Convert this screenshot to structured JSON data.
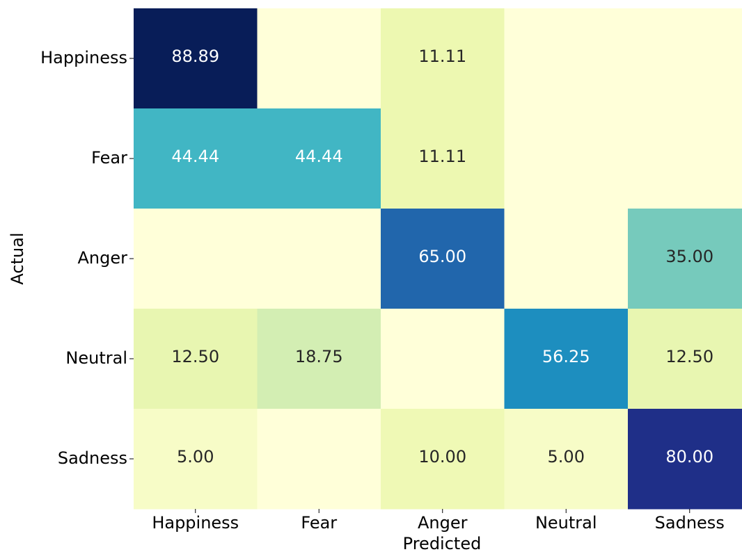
{
  "chart_data": {
    "type": "heatmap",
    "xlabel": "Predicted",
    "ylabel": "Actual",
    "columns": [
      "Happiness",
      "Fear",
      "Anger",
      "Neutral",
      "Sadness"
    ],
    "rows": [
      "Happiness",
      "Fear",
      "Anger",
      "Neutral",
      "Sadness"
    ],
    "values": [
      [
        88.89,
        0,
        11.11,
        0,
        0
      ],
      [
        44.44,
        44.44,
        11.11,
        0,
        0
      ],
      [
        0,
        0,
        65.0,
        0,
        35.0
      ],
      [
        12.5,
        18.75,
        0,
        56.25,
        12.5
      ],
      [
        5.0,
        0,
        10.0,
        5.0,
        80.0
      ]
    ],
    "value_labels": [
      [
        "88.89",
        null,
        "11.11",
        null,
        null
      ],
      [
        "44.44",
        "44.44",
        "11.11",
        null,
        null
      ],
      [
        null,
        null,
        "65.00",
        null,
        "35.00"
      ],
      [
        "12.50",
        "18.75",
        null,
        "56.25",
        "12.50"
      ],
      [
        "5.00",
        null,
        "10.00",
        "5.00",
        "80.00"
      ]
    ],
    "colormap": "YlGnBu",
    "clim": [
      0,
      88.89
    ]
  }
}
